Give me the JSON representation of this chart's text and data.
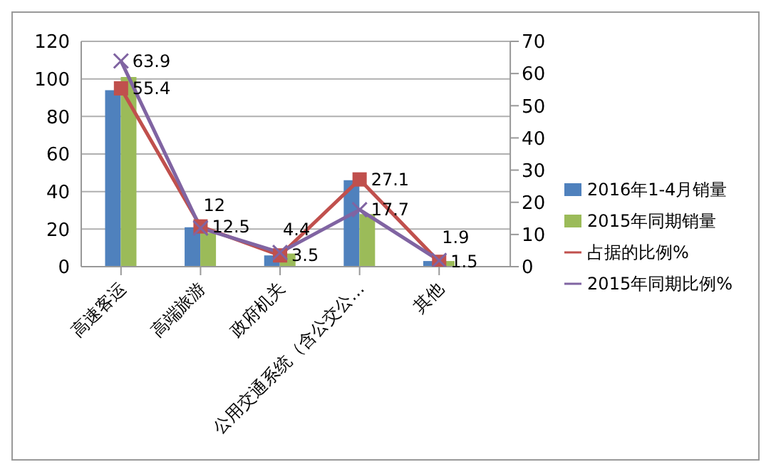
{
  "chart_data": {
    "type": "bar",
    "categories": [
      "高速客运",
      "高端旅游",
      "政府机关",
      "公用交通系统（含公交公…",
      "其他"
    ],
    "series": [
      {
        "name": "2016年1-4月销量",
        "color": "#4f81bd",
        "values": [
          94,
          21,
          6,
          46,
          3
        ]
      },
      {
        "name": "2015年同期销量",
        "color": "#9bbb59",
        "values": [
          101,
          18,
          7,
          28,
          3
        ]
      },
      {
        "name": "占据的比例%",
        "type": "line",
        "axis": "y2",
        "color": "#c0504d",
        "marker": "square",
        "values": [
          55.4,
          12.5,
          3.5,
          27.1,
          1.5
        ],
        "value_labels": [
          "55.4",
          "12.5",
          "3.5",
          "27.1",
          "1.5"
        ]
      },
      {
        "name": "2015年同期比例%",
        "type": "line",
        "axis": "y2",
        "color": "#8064a2",
        "marker": "cross",
        "values": [
          63.9,
          12,
          4.4,
          17.7,
          1.9
        ],
        "value_labels": [
          "63.9",
          "12",
          "4.4",
          "17.7",
          "1.9"
        ]
      }
    ],
    "ylim": [
      0,
      120
    ],
    "yticks": [
      0,
      20,
      40,
      60,
      80,
      100,
      120
    ],
    "y2lim": [
      0,
      70
    ],
    "y2ticks": [
      0,
      10,
      20,
      30,
      40,
      50,
      60,
      70
    ],
    "grid": "y",
    "legend": "right"
  }
}
